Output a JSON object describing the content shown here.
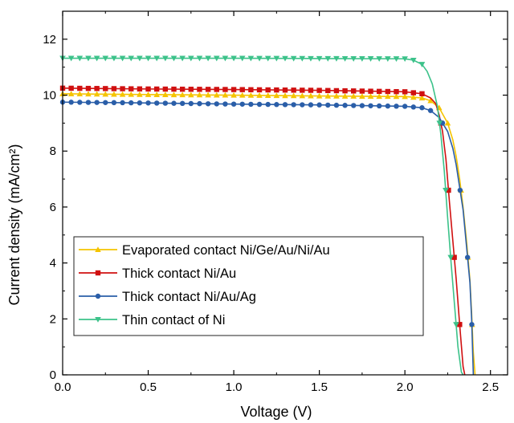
{
  "chart_data": {
    "type": "line",
    "xlabel": "Voltage (V)",
    "ylabel": "Current density (mA/cm²)",
    "xlim": [
      0,
      2.6
    ],
    "ylim": [
      0,
      13
    ],
    "xticks": [
      "0.0",
      "0.5",
      "1.0",
      "1.5",
      "2.0",
      "2.5"
    ],
    "yticks": [
      "0",
      "2",
      "4",
      "6",
      "8",
      "10",
      "12"
    ],
    "grid": false,
    "legend_position": "bottom-left",
    "series": [
      {
        "name": "Evaporated contact Ni/Ge/Au/Ni/Au",
        "color": "#f5c400",
        "marker": "triangle-up",
        "x": [
          0.0,
          0.5,
          1.0,
          1.5,
          2.0,
          2.1,
          2.15,
          2.2,
          2.25,
          2.28,
          2.3,
          2.32,
          2.34,
          2.36,
          2.38,
          2.39,
          2.4,
          2.41
        ],
        "y": [
          10.05,
          10.02,
          10.0,
          9.97,
          9.95,
          9.9,
          9.8,
          9.55,
          9.0,
          8.4,
          7.8,
          7.0,
          6.0,
          4.8,
          3.4,
          2.2,
          0.8,
          0.0
        ]
      },
      {
        "name": "Thick contact Ni/Au",
        "color": "#d01010",
        "marker": "square",
        "x": [
          0.0,
          0.5,
          1.0,
          1.5,
          2.0,
          2.1,
          2.15,
          2.18,
          2.2,
          2.22,
          2.24,
          2.26,
          2.28,
          2.3,
          2.32,
          2.34,
          2.35
        ],
        "y": [
          10.25,
          10.22,
          10.2,
          10.17,
          10.12,
          10.05,
          9.9,
          9.7,
          9.3,
          8.7,
          7.7,
          6.2,
          4.8,
          3.4,
          1.8,
          0.3,
          0.0
        ]
      },
      {
        "name": "Thick contact Ni/Au/Ag",
        "color": "#2a5ea8",
        "marker": "circle",
        "x": [
          0.0,
          0.5,
          1.0,
          1.5,
          2.0,
          2.1,
          2.15,
          2.2,
          2.25,
          2.28,
          2.3,
          2.32,
          2.34,
          2.36,
          2.38,
          2.39,
          2.4
        ],
        "y": [
          9.75,
          9.72,
          9.68,
          9.65,
          9.6,
          9.55,
          9.45,
          9.2,
          8.7,
          8.1,
          7.5,
          6.7,
          5.9,
          4.6,
          3.3,
          2.0,
          0.0
        ]
      },
      {
        "name": "Thin contact of Ni",
        "color": "#3cc28a",
        "marker": "triangle-down",
        "x": [
          0.0,
          0.5,
          1.0,
          1.5,
          2.0,
          2.05,
          2.1,
          2.13,
          2.16,
          2.19,
          2.21,
          2.23,
          2.25,
          2.27,
          2.29,
          2.31,
          2.33,
          2.34
        ],
        "y": [
          11.32,
          11.32,
          11.32,
          11.31,
          11.3,
          11.25,
          11.1,
          10.85,
          10.4,
          9.6,
          8.6,
          7.3,
          5.6,
          4.0,
          2.5,
          1.0,
          0.1,
          0.0
        ]
      }
    ]
  }
}
